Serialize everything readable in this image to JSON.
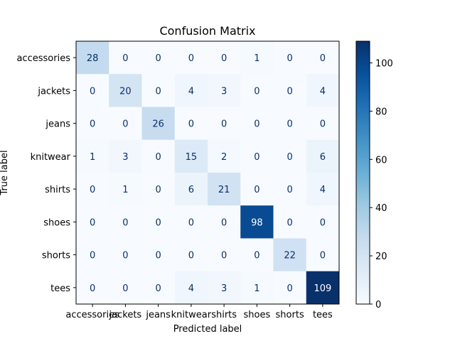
{
  "chart_data": {
    "type": "heatmap",
    "title": "Confusion Matrix",
    "xlabel": "Predicted label",
    "ylabel": "True label",
    "x_categories": [
      "accessories",
      "jackets",
      "jeans",
      "knitwear",
      "shirts",
      "shoes",
      "shorts",
      "tees"
    ],
    "y_categories": [
      "accessories",
      "jackets",
      "jeans",
      "knitwear",
      "shirts",
      "shoes",
      "shorts",
      "tees"
    ],
    "matrix": [
      [
        28,
        0,
        0,
        0,
        0,
        1,
        0,
        0
      ],
      [
        0,
        20,
        0,
        4,
        3,
        0,
        0,
        4
      ],
      [
        0,
        0,
        26,
        0,
        0,
        0,
        0,
        0
      ],
      [
        1,
        3,
        0,
        15,
        2,
        0,
        0,
        6
      ],
      [
        0,
        1,
        0,
        6,
        21,
        0,
        0,
        4
      ],
      [
        0,
        0,
        0,
        0,
        0,
        98,
        0,
        0
      ],
      [
        0,
        0,
        0,
        0,
        0,
        0,
        22,
        0
      ],
      [
        0,
        0,
        0,
        4,
        3,
        1,
        0,
        109
      ]
    ],
    "colormap": "Blues",
    "colorbar": {
      "min": 0,
      "max": 109,
      "ticks": [
        0,
        20,
        40,
        60,
        80,
        100
      ]
    },
    "text_color_dark": "#08306b",
    "text_color_light": "#ffffff"
  }
}
